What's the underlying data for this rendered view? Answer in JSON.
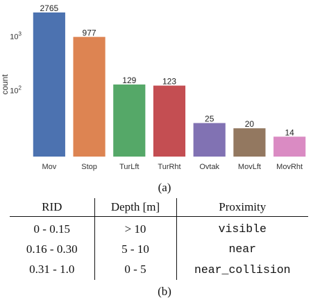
{
  "chart_data": {
    "type": "bar",
    "categories": [
      "Mov",
      "Stop",
      "TurLft",
      "TurRht",
      "Ovtak",
      "MovLft",
      "MovRht"
    ],
    "values": [
      2765,
      977,
      129,
      123,
      25,
      20,
      14
    ],
    "value_labels": [
      "2765",
      "977",
      "129",
      "123",
      "25",
      "20",
      "14"
    ],
    "colors": [
      "#4c72b0",
      "#dd8452",
      "#55a868",
      "#c44e52",
      "#8172b3",
      "#937860",
      "#da8bc3"
    ],
    "ylabel": "count",
    "yscale": "log",
    "ylim": [
      6,
      3300
    ],
    "yticks": [
      100,
      1000
    ],
    "ytick_labels": [
      {
        "base": "10",
        "exp": "2"
      },
      {
        "base": "10",
        "exp": "3"
      }
    ],
    "grid": false,
    "legend": "none"
  },
  "captions": {
    "a": "(a)",
    "b": "(b)"
  },
  "table": {
    "headers": [
      "RID",
      "Depth [m]",
      "Proximity"
    ],
    "rows": [
      {
        "rid": "0 - 0.15",
        "depth": "> 10",
        "proximity": "visible"
      },
      {
        "rid": "0.16 - 0.30",
        "depth": "5 - 10",
        "proximity": "near"
      },
      {
        "rid": "0.31 - 1.0",
        "depth": "0 - 5",
        "proximity": "near_collision"
      }
    ]
  }
}
